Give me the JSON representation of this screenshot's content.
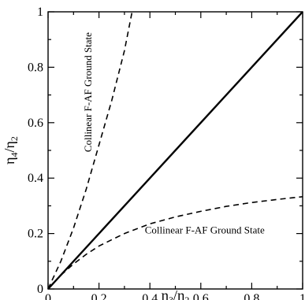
{
  "chart_data": {
    "type": "line",
    "title": "",
    "xlabel": {
      "main": "η",
      "sub1": "3",
      "sep": "/η",
      "sub2": "2"
    },
    "ylabel": {
      "main": "η",
      "sub1": "4",
      "sep": "/η",
      "sub2": "2"
    },
    "xlim": [
      0,
      1
    ],
    "ylim": [
      0,
      1
    ],
    "x_ticks": [
      "0",
      "0.2",
      "0.4",
      "0.6",
      "0.8",
      "1"
    ],
    "y_ticks": [
      "0",
      "0.2",
      "0.4",
      "0.6",
      "0.8",
      "1"
    ],
    "grid": false,
    "legend": "none",
    "series": [
      {
        "style": "solid",
        "x": [
          0,
          1
        ],
        "y": [
          0,
          1
        ]
      },
      {
        "style": "dashed",
        "x": [
          0,
          0.05,
          0.1,
          0.15,
          0.2,
          0.25,
          0.3,
          0.33
        ],
        "y": [
          0,
          0.1,
          0.22,
          0.36,
          0.52,
          0.68,
          0.86,
          1.0
        ]
      },
      {
        "style": "dashed",
        "x": [
          0,
          0.05,
          0.1,
          0.15,
          0.2,
          0.3,
          0.4,
          0.5,
          0.6,
          0.7,
          0.8,
          0.9,
          1.0
        ],
        "y": [
          0,
          0.05,
          0.09,
          0.125,
          0.155,
          0.2,
          0.235,
          0.26,
          0.28,
          0.298,
          0.312,
          0.323,
          0.333
        ]
      }
    ],
    "annotations": [
      {
        "text": "Collinear F-AF Ground State",
        "orientation": "vertical",
        "x": 0.17,
        "y": 0.71
      },
      {
        "text": "Collinear F-AF Ground State",
        "orientation": "horizontal",
        "x": 0.38,
        "y": 0.2
      }
    ]
  }
}
